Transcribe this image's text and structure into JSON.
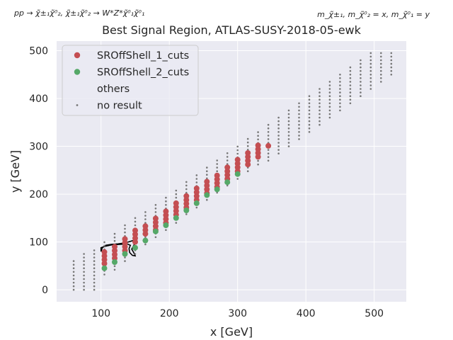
{
  "chart_data": {
    "type": "scatter",
    "title": "Best Signal Region, ATLAS-SUSY-2018-05-ewk",
    "top_left_annotation": "pp → χ̃±₁χ̃⁰₂, χ̃±₁χ̃⁰₂ → W*Z*χ̃⁰₁χ̃⁰₁",
    "top_right_annotation": "m_χ̃±₁, m_χ̃⁰₂ = x, m_χ̃⁰₁ = y",
    "xlabel": "x [GeV]",
    "ylabel": "y [GeV]",
    "xlim": [
      35,
      547
    ],
    "ylim": [
      -25,
      520
    ],
    "xticks": [
      100,
      200,
      300,
      400,
      500
    ],
    "yticks": [
      0,
      100,
      200,
      300,
      400,
      500
    ],
    "grid": true,
    "legend_position": "top-left",
    "legend": [
      {
        "label": "SROffShell_1_cuts",
        "color": "#c44e52",
        "marker": "large-dot"
      },
      {
        "label": "SROffShell_2_cuts",
        "color": "#55a868",
        "marker": "large-dot"
      },
      {
        "label": "others",
        "color": "none",
        "marker": "none"
      },
      {
        "label": "no result",
        "color": "#777777",
        "marker": "small-dot"
      }
    ],
    "series": [
      {
        "name": "SROffShell_1_cuts",
        "color": "#c44e52",
        "points": [
          [
            105,
            55
          ],
          [
            105,
            63
          ],
          [
            105,
            71
          ],
          [
            105,
            79
          ],
          [
            120,
            66
          ],
          [
            120,
            74
          ],
          [
            120,
            82
          ],
          [
            120,
            90
          ],
          [
            135,
            82
          ],
          [
            135,
            90
          ],
          [
            135,
            98
          ],
          [
            135,
            106
          ],
          [
            150,
            100
          ],
          [
            150,
            108
          ],
          [
            150,
            116
          ],
          [
            150,
            124
          ],
          [
            165,
            117
          ],
          [
            165,
            125
          ],
          [
            165,
            133
          ],
          [
            180,
            125
          ],
          [
            180,
            133
          ],
          [
            180,
            141
          ],
          [
            180,
            149
          ],
          [
            195,
            140
          ],
          [
            195,
            148
          ],
          [
            195,
            156
          ],
          [
            195,
            164
          ],
          [
            210,
            157
          ],
          [
            210,
            165
          ],
          [
            210,
            173
          ],
          [
            210,
            181
          ],
          [
            225,
            172
          ],
          [
            225,
            180
          ],
          [
            225,
            188
          ],
          [
            225,
            196
          ],
          [
            240,
            188
          ],
          [
            240,
            196
          ],
          [
            240,
            204
          ],
          [
            240,
            212
          ],
          [
            255,
            202
          ],
          [
            255,
            210
          ],
          [
            255,
            218
          ],
          [
            255,
            226
          ],
          [
            270,
            215
          ],
          [
            270,
            223
          ],
          [
            270,
            231
          ],
          [
            270,
            239
          ],
          [
            285,
            232
          ],
          [
            285,
            240
          ],
          [
            285,
            248
          ],
          [
            285,
            256
          ],
          [
            300,
            248
          ],
          [
            300,
            256
          ],
          [
            300,
            264
          ],
          [
            300,
            272
          ],
          [
            315,
            262
          ],
          [
            315,
            270
          ],
          [
            315,
            278
          ],
          [
            315,
            286
          ],
          [
            330,
            278
          ],
          [
            330,
            286
          ],
          [
            330,
            294
          ],
          [
            330,
            302
          ],
          [
            345,
            301
          ]
        ]
      },
      {
        "name": "SROffShell_2_cuts",
        "color": "#55a868",
        "points": [
          [
            105,
            45
          ],
          [
            120,
            58
          ],
          [
            135,
            75
          ],
          [
            150,
            88
          ],
          [
            165,
            103
          ],
          [
            180,
            122
          ],
          [
            195,
            135
          ],
          [
            210,
            150
          ],
          [
            225,
            166
          ],
          [
            240,
            181
          ],
          [
            255,
            198
          ],
          [
            270,
            210
          ],
          [
            285,
            225
          ],
          [
            300,
            242
          ]
        ]
      },
      {
        "name": "no result",
        "color": "#777777",
        "grid_columns": [
          {
            "x": 60,
            "ymin": 0,
            "ymax": 62,
            "step": 7.5
          },
          {
            "x": 75,
            "ymin": 0,
            "ymax": 78,
            "step": 7.5
          },
          {
            "x": 90,
            "ymin": 0,
            "ymax": 88,
            "step": 7.5
          },
          {
            "x": 105,
            "ymin": 32,
            "ymax": 104,
            "step": 7.5
          },
          {
            "x": 120,
            "ymin": 42,
            "ymax": 120,
            "step": 7.5
          },
          {
            "x": 135,
            "ymin": 60,
            "ymax": 136,
            "step": 7.5
          },
          {
            "x": 150,
            "ymin": 75,
            "ymax": 150,
            "step": 7.5
          },
          {
            "x": 165,
            "ymin": 95,
            "ymax": 166,
            "step": 7.5
          },
          {
            "x": 180,
            "ymin": 110,
            "ymax": 180,
            "step": 7.5
          },
          {
            "x": 195,
            "ymin": 125,
            "ymax": 196,
            "step": 7.5
          },
          {
            "x": 210,
            "ymin": 140,
            "ymax": 212,
            "step": 7.5
          },
          {
            "x": 225,
            "ymin": 158,
            "ymax": 226,
            "step": 7.5
          },
          {
            "x": 240,
            "ymin": 172,
            "ymax": 242,
            "step": 7.5
          },
          {
            "x": 255,
            "ymin": 188,
            "ymax": 256,
            "step": 7.5
          },
          {
            "x": 270,
            "ymin": 203,
            "ymax": 272,
            "step": 7.5
          },
          {
            "x": 285,
            "ymin": 218,
            "ymax": 288,
            "step": 7.5
          },
          {
            "x": 300,
            "ymin": 232,
            "ymax": 302,
            "step": 7.5
          },
          {
            "x": 315,
            "ymin": 248,
            "ymax": 316,
            "step": 7.5
          },
          {
            "x": 330,
            "ymin": 262,
            "ymax": 332,
            "step": 7.5
          },
          {
            "x": 345,
            "ymin": 270,
            "ymax": 346,
            "step": 7.5
          },
          {
            "x": 360,
            "ymin": 285,
            "ymax": 362,
            "step": 7.5
          },
          {
            "x": 375,
            "ymin": 300,
            "ymax": 376,
            "step": 7.5
          },
          {
            "x": 390,
            "ymin": 315,
            "ymax": 392,
            "step": 7.5
          },
          {
            "x": 405,
            "ymin": 330,
            "ymax": 406,
            "step": 7.5
          },
          {
            "x": 420,
            "ymin": 345,
            "ymax": 422,
            "step": 7.5
          },
          {
            "x": 435,
            "ymin": 360,
            "ymax": 436,
            "step": 7.5
          },
          {
            "x": 450,
            "ymin": 375,
            "ymax": 452,
            "step": 7.5
          },
          {
            "x": 465,
            "ymin": 390,
            "ymax": 466,
            "step": 7.5
          },
          {
            "x": 480,
            "ymin": 405,
            "ymax": 482,
            "step": 7.5
          },
          {
            "x": 495,
            "ymin": 420,
            "ymax": 496,
            "step": 7.5
          },
          {
            "x": 510,
            "ymin": 435,
            "ymax": 496,
            "step": 7.5
          },
          {
            "x": 525,
            "ymin": 450,
            "ymax": 496,
            "step": 7.5
          }
        ]
      }
    ],
    "exclusion_contour": [
      [
        100,
        80
      ],
      [
        102,
        88
      ],
      [
        107,
        93
      ],
      [
        115,
        95
      ],
      [
        125,
        96
      ],
      [
        135,
        98
      ],
      [
        140,
        100
      ],
      [
        145,
        102
      ],
      [
        150,
        104
      ],
      [
        149,
        96
      ],
      [
        147,
        90
      ],
      [
        145,
        85
      ],
      [
        147,
        80
      ],
      [
        149,
        75
      ],
      [
        150,
        71
      ],
      [
        146,
        72
      ],
      [
        142,
        78
      ],
      [
        141,
        86
      ],
      [
        143,
        93
      ],
      [
        138,
        96
      ],
      [
        128,
        95
      ],
      [
        116,
        94
      ],
      [
        106,
        91
      ],
      [
        100,
        88
      ]
    ]
  }
}
